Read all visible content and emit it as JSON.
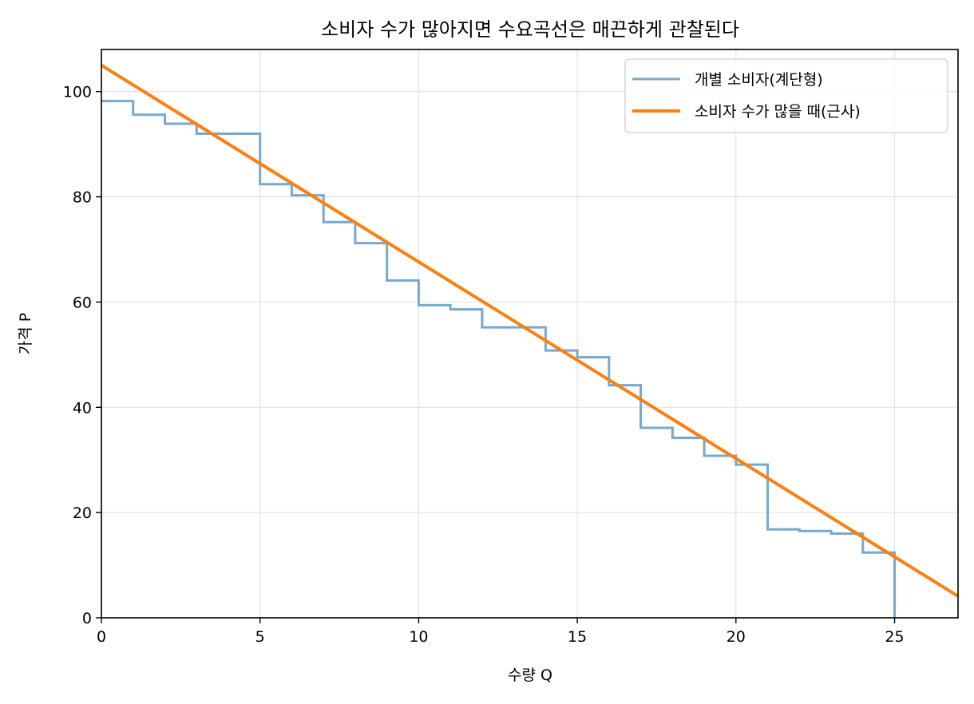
{
  "chart_data": {
    "type": "line",
    "title": "소비자 수가 많아지면 수요곡선은 매끈하게 관찰된다",
    "xlabel": "수량 Q",
    "ylabel": "가격 P",
    "xlim": [
      0,
      27
    ],
    "ylim": [
      0,
      108
    ],
    "xticks": [
      0,
      5,
      10,
      15,
      20,
      25
    ],
    "yticks": [
      0,
      20,
      40,
      60,
      80,
      100
    ],
    "grid": true,
    "legend_position": "upper right",
    "series": [
      {
        "name": "개별 소비자(계단형)",
        "kind": "step",
        "color": "#76a9cf",
        "x": [
          0,
          1,
          2,
          3,
          4,
          5,
          6,
          7,
          8,
          9,
          10,
          11,
          12,
          13,
          14,
          15,
          16,
          17,
          18,
          19,
          20,
          21,
          22,
          23,
          24,
          25
        ],
        "values": [
          98.2,
          95.6,
          93.9,
          92.0,
          92.0,
          82.4,
          80.3,
          75.2,
          71.2,
          64.1,
          59.4,
          58.6,
          55.2,
          55.2,
          50.8,
          49.5,
          44.2,
          36.1,
          34.2,
          30.8,
          29.1,
          16.8,
          16.5,
          16.0,
          12.4,
          0
        ]
      },
      {
        "name": "소비자 수가 많을 때(근사)",
        "kind": "line",
        "color": "#ff7f0e",
        "x": [
          0,
          27
        ],
        "values": [
          105.0,
          4.1
        ]
      }
    ]
  }
}
